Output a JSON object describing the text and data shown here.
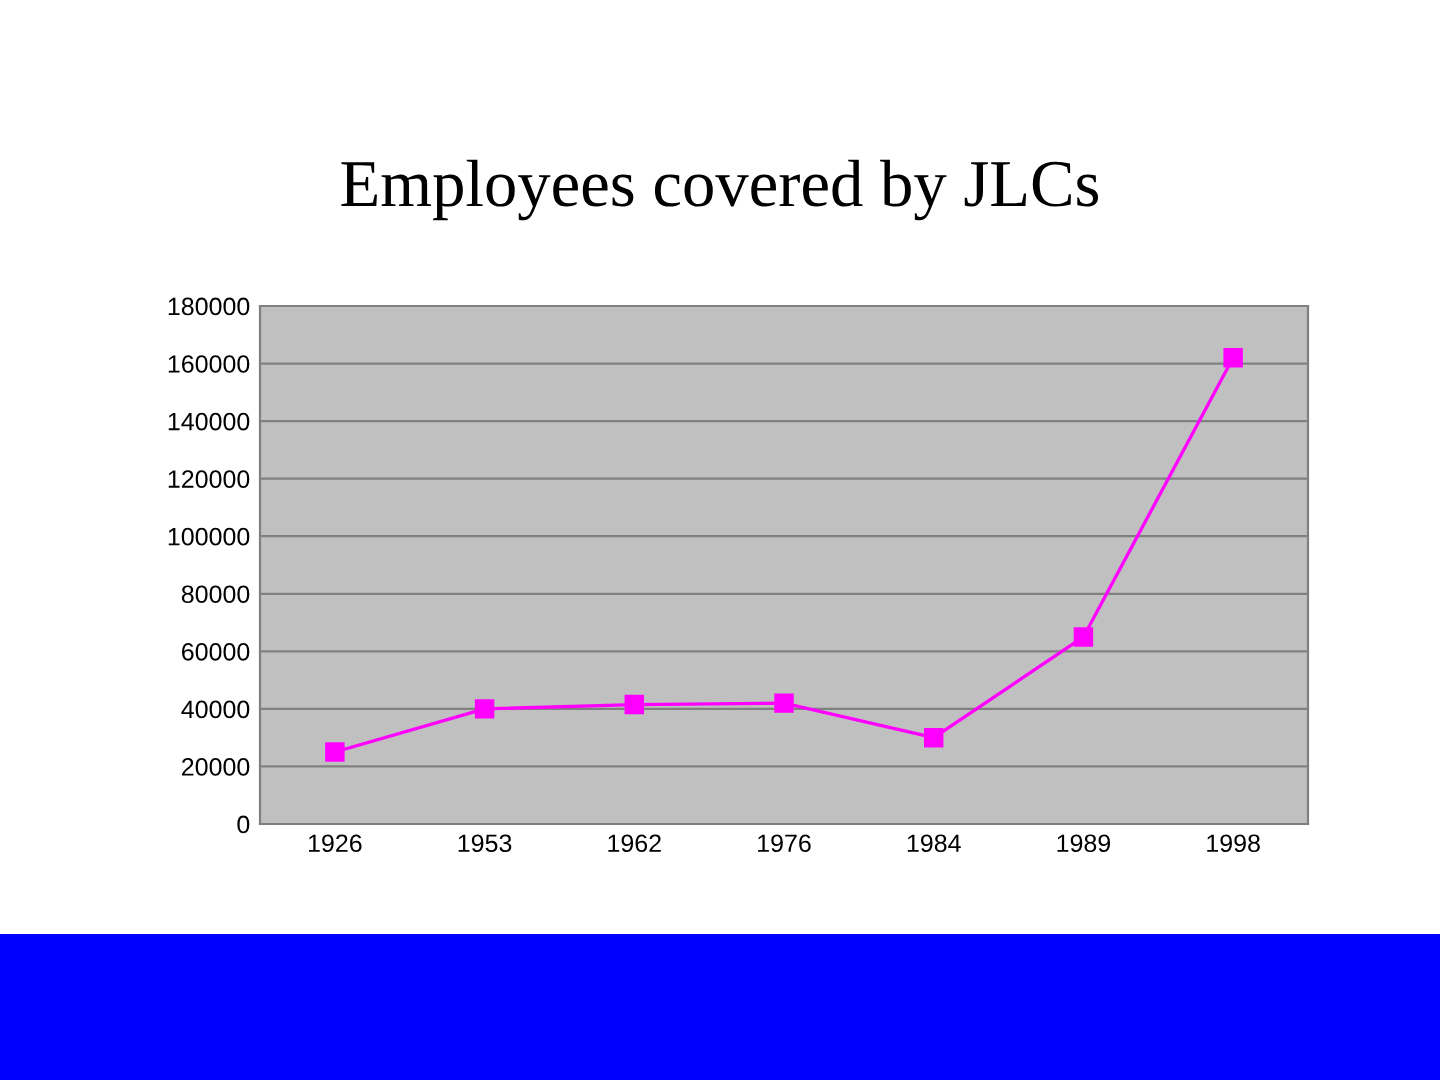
{
  "chart_data": {
    "type": "line",
    "title": "Employees covered by JLCs",
    "categories": [
      "1926",
      "1953",
      "1962",
      "1976",
      "1984",
      "1989",
      "1998"
    ],
    "series": [
      {
        "color": "#ff00ff",
        "values": [
          25000,
          40000,
          41500,
          42000,
          30000,
          65000,
          162000
        ]
      }
    ],
    "ylim": [
      0,
      180000
    ],
    "yticks": [
      0,
      20000,
      40000,
      60000,
      80000,
      100000,
      120000,
      140000,
      160000,
      180000
    ],
    "grid": "y",
    "marker": "square",
    "line_style": "solid",
    "legend": false
  }
}
